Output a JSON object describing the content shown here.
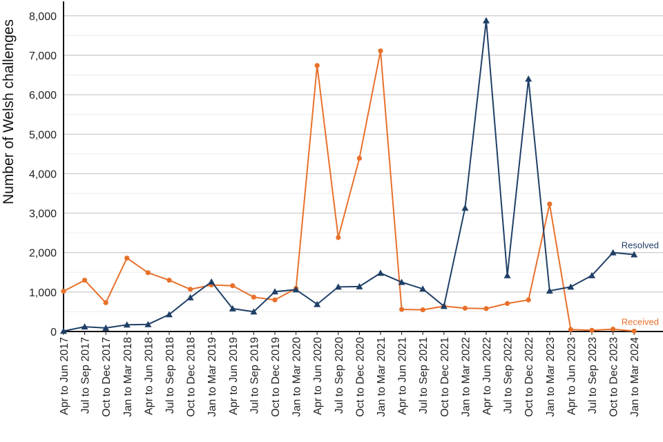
{
  "chart_data": {
    "type": "line",
    "title": "",
    "xlabel": "",
    "ylabel": "Number of Welsh challenges",
    "ylim": [
      0,
      8400
    ],
    "y_ticks": [
      0,
      1000,
      2000,
      3000,
      4000,
      5000,
      6000,
      7000,
      8000
    ],
    "y_tick_labels": [
      "0",
      "1,000",
      "2,000",
      "3,000",
      "4,000",
      "5,000",
      "6,000",
      "7,000",
      "8,000"
    ],
    "grid": true,
    "legend": "direct labels at right end of lines",
    "categories": [
      "Apr to Jun 2017",
      "Jul to Sep 2017",
      "Oct to Dec 2017",
      "Jan to Mar 2018",
      "Apr to Jun 2018",
      "Jul to Sep 2018",
      "Oct to Dec 2018",
      "Jan to Mar 2019",
      "Apr to Jun 2019",
      "Jul to Sep 2019",
      "Oct to Dec 2019",
      "Jan to Mar 2020",
      "Apr to Jun 2020",
      "Jul to Sep 2020",
      "Oct to Dec 2020",
      "Jan to Mar 2021",
      "Apr to Jun 2021",
      "Jul to Sep 2021",
      "Oct to Dec 2021",
      "Jan to Mar 2022",
      "Apr to Jun 2022",
      "Jul to Sep 2022",
      "Oct to Dec 2022",
      "Jan to Mar 2023",
      "Apr to Jun 2023",
      "Jul to Sep 2023",
      "Oct to Dec 2023",
      "Jan to Mar 2024"
    ],
    "series": [
      {
        "name": "Received",
        "color": "#e8702a",
        "marker": "circle",
        "values": [
          1020,
          1300,
          730,
          1860,
          1490,
          1300,
          1070,
          1180,
          1160,
          870,
          800,
          1090,
          6740,
          2380,
          4390,
          7110,
          560,
          550,
          640,
          590,
          580,
          710,
          800,
          3230,
          50,
          30,
          60,
          10
        ]
      },
      {
        "name": "Resolved",
        "color": "#1f3f66",
        "marker": "triangle",
        "values": [
          10,
          120,
          90,
          170,
          180,
          430,
          860,
          1260,
          580,
          500,
          1010,
          1060,
          690,
          1130,
          1140,
          1480,
          1250,
          1080,
          640,
          3130,
          7880,
          1420,
          6400,
          1030,
          1130,
          1420,
          2000,
          1950
        ]
      }
    ]
  }
}
